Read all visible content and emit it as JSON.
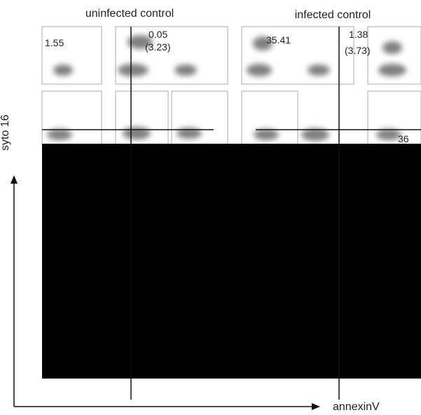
{
  "figure": {
    "panel_titles": [
      "uninfected control",
      "infected control"
    ],
    "values": [
      "1.55",
      "0.05",
      "(3.23)",
      "35.41",
      "1.38",
      "(3.73)",
      "36"
    ],
    "y_axis_label": "syto 16",
    "x_axis_label": "annexinV"
  }
}
